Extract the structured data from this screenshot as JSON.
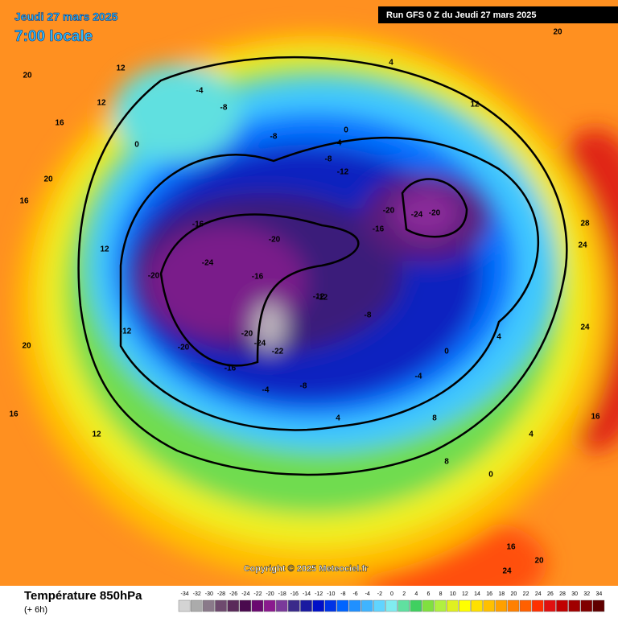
{
  "header": {
    "date": "Jeudi 27 mars 2025",
    "time": "7:00 locale",
    "run": "Run GFS 0 Z du Jeudi 27 mars 2025"
  },
  "copyright": "Copyright © 2025 Meteociel.fr",
  "footer": {
    "title": "Température 850hPa",
    "subtitle": "(+ 6h)"
  },
  "legend": {
    "scale": [
      {
        "value": -34,
        "color": "#d4d4d4"
      },
      {
        "value": -32,
        "color": "#ababab"
      },
      {
        "value": -30,
        "color": "#8a7a8a"
      },
      {
        "value": -28,
        "color": "#6e4a6e"
      },
      {
        "value": -26,
        "color": "#5a2a5a"
      },
      {
        "value": -24,
        "color": "#4a0a4e"
      },
      {
        "value": -22,
        "color": "#6a0a70"
      },
      {
        "value": -20,
        "color": "#8a1a8e"
      },
      {
        "value": -18,
        "color": "#7a3a9a"
      },
      {
        "value": -16,
        "color": "#3a2a8a"
      },
      {
        "value": -14,
        "color": "#1a1aa0"
      },
      {
        "value": -12,
        "color": "#0010c8"
      },
      {
        "value": -10,
        "color": "#0034e6"
      },
      {
        "value": -8,
        "color": "#0064ff"
      },
      {
        "value": -6,
        "color": "#2090ff"
      },
      {
        "value": -4,
        "color": "#40b4ff"
      },
      {
        "value": -2,
        "color": "#60d4ff"
      },
      {
        "value": 0,
        "color": "#80ecf0"
      },
      {
        "value": 2,
        "color": "#60e0a0"
      },
      {
        "value": 4,
        "color": "#40d060"
      },
      {
        "value": 6,
        "color": "#80e040"
      },
      {
        "value": 8,
        "color": "#b0f040"
      },
      {
        "value": 10,
        "color": "#e0f020"
      },
      {
        "value": 12,
        "color": "#ffff00"
      },
      {
        "value": 14,
        "color": "#ffe000"
      },
      {
        "value": 16,
        "color": "#ffc000"
      },
      {
        "value": 18,
        "color": "#ffa000"
      },
      {
        "value": 20,
        "color": "#ff8000"
      },
      {
        "value": 22,
        "color": "#ff6000"
      },
      {
        "value": 24,
        "color": "#ff3000"
      },
      {
        "value": 26,
        "color": "#e01010"
      },
      {
        "value": 28,
        "color": "#c00000"
      },
      {
        "value": 30,
        "color": "#a00000"
      },
      {
        "value": 32,
        "color": "#800000"
      },
      {
        "value": 34,
        "color": "#600000"
      }
    ]
  },
  "contour_labels": [
    20,
    16,
    12,
    20,
    16,
    12,
    4,
    -4,
    -8,
    0,
    -8,
    -12,
    -16,
    -20,
    -24,
    -20,
    -16,
    -12,
    -20,
    -24,
    -16,
    -20,
    -20,
    -12,
    -8,
    -4,
    -8,
    -4,
    0,
    4,
    8,
    12,
    16,
    20,
    24,
    28,
    24,
    16,
    12,
    8,
    4,
    0,
    16,
    20,
    24,
    -16,
    -12,
    -8,
    -4,
    0,
    4,
    -20,
    -24,
    -22,
    20,
    12
  ]
}
